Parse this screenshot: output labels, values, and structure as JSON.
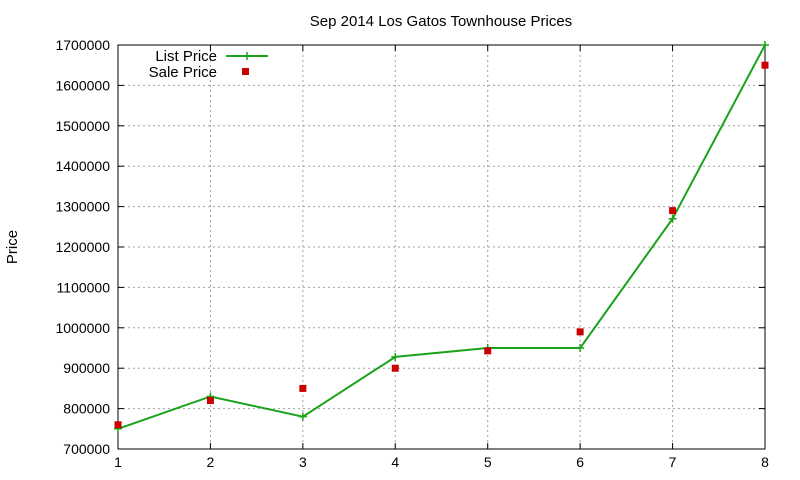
{
  "chart_data": {
    "type": "line",
    "title": "Sep 2014 Los Gatos Townhouse Prices",
    "xlabel": "",
    "ylabel": "Price",
    "x": [
      1,
      2,
      3,
      4,
      5,
      6,
      7,
      8
    ],
    "xlim": [
      1,
      8
    ],
    "ylim": [
      700000,
      1700000
    ],
    "xticks": [
      "1",
      "2",
      "3",
      "4",
      "5",
      "6",
      "7",
      "8"
    ],
    "yticks": [
      "700000",
      "800000",
      "900000",
      "1000000",
      "1100000",
      "1200000",
      "1300000",
      "1400000",
      "1500000",
      "1600000",
      "1700000"
    ],
    "grid": true,
    "legend_position": "top-left",
    "series": [
      {
        "name": "List Price",
        "style": "line-plus",
        "color": "#1aa31a",
        "values": [
          750000,
          830000,
          780000,
          928000,
          950000,
          950000,
          1270000,
          1700000
        ]
      },
      {
        "name": "Sale Price",
        "style": "square-points",
        "color": "#cc0000",
        "values": [
          760000,
          820000,
          850000,
          900000,
          943000,
          990000,
          1290000,
          1650000
        ]
      }
    ]
  }
}
